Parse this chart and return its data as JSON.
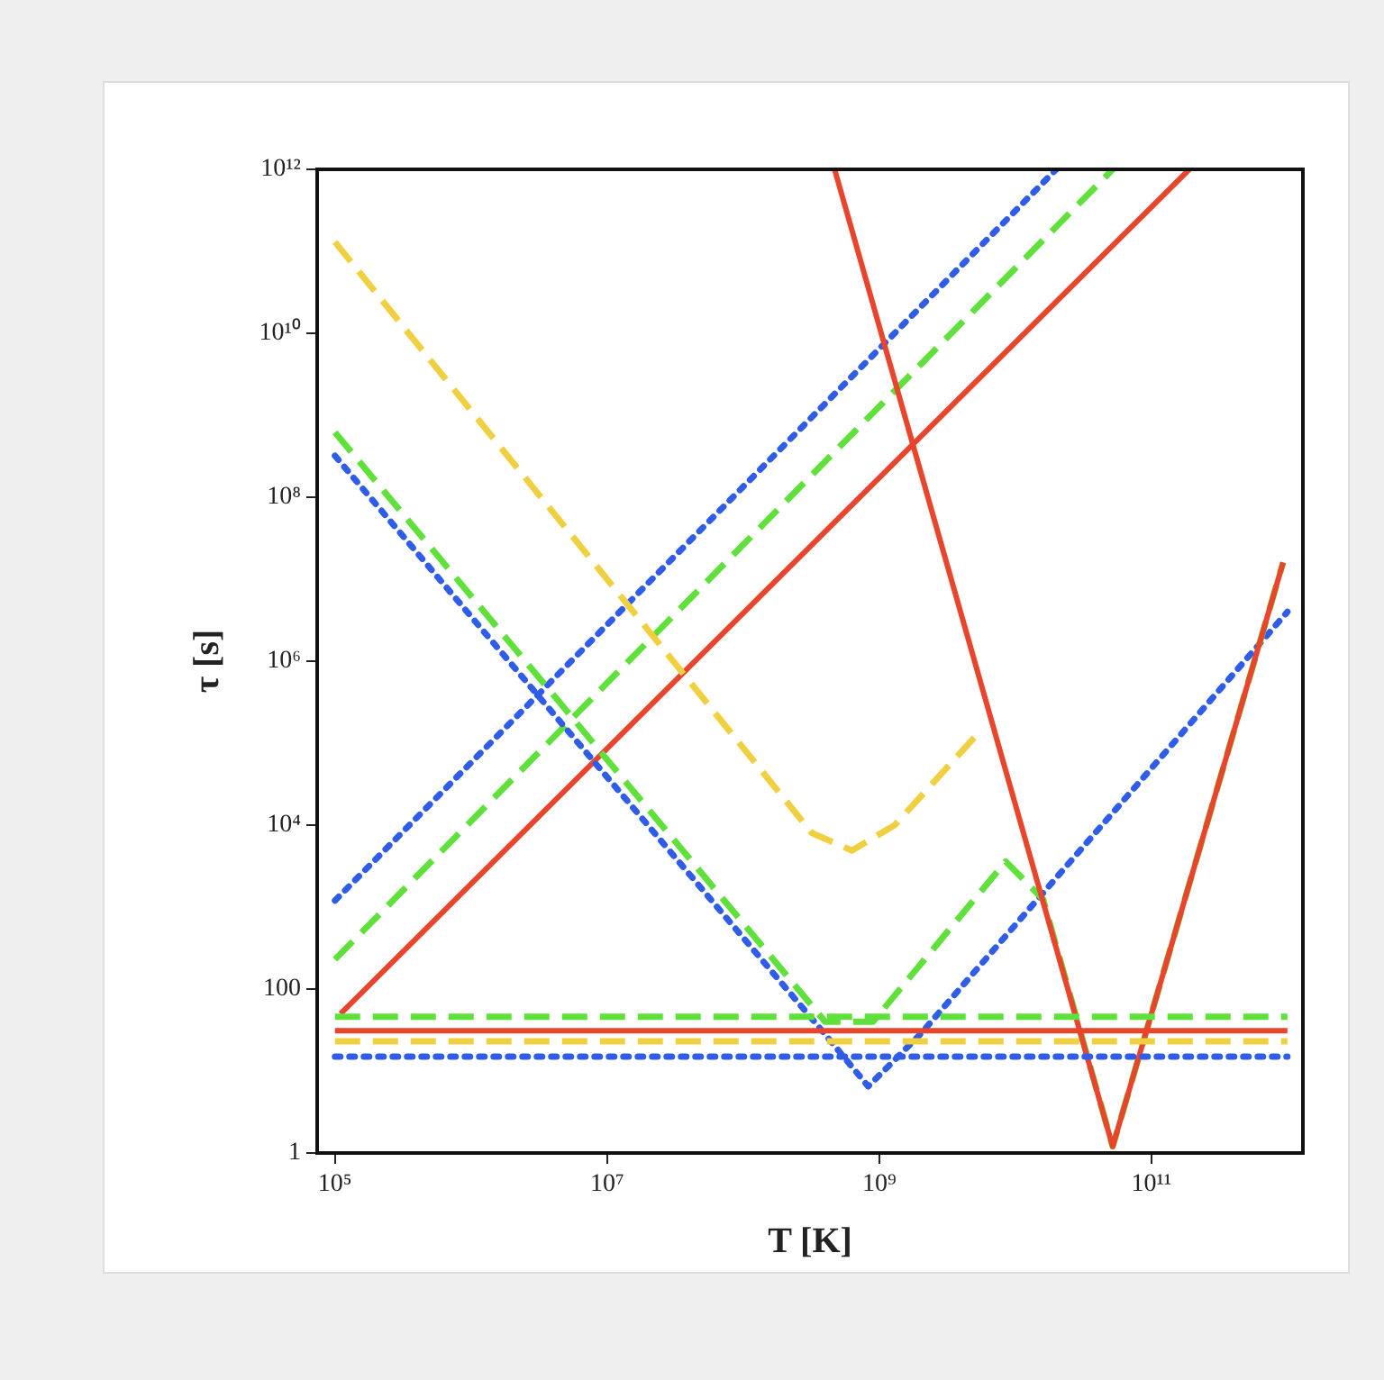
{
  "chart_data": {
    "type": "line",
    "xlabel": "T [K]",
    "ylabel": "τ [s]",
    "log": "xy",
    "grid": false,
    "legend": false,
    "marker": "none",
    "xlim": [
      74000,
      1300000000000
    ],
    "ylim": [
      1,
      1000000000000
    ],
    "xticks": [
      {
        "value": 100000,
        "label": "10⁵"
      },
      {
        "value": 10000000,
        "label": "10⁷"
      },
      {
        "value": 1000000000,
        "label": "10⁹"
      },
      {
        "value": 100000000000,
        "label": "10¹¹"
      }
    ],
    "yticks": [
      1,
      100,
      {
        "value": 10000,
        "label": "10⁴"
      },
      {
        "value": 1000000,
        "label": "10⁶"
      },
      {
        "value": 100000000,
        "label": "10⁸"
      },
      {
        "value": 10000000000,
        "label": "10¹⁰"
      },
      {
        "value": 1000000000000,
        "label": "10¹²"
      }
    ],
    "series": [
      {
        "color": "#2f5de8",
        "line_style": "dotted",
        "x": [
          100000,
          20000000000
        ],
        "values": [
          1200,
          1000000000000
        ]
      },
      {
        "color": "#5fe03a",
        "line_style": "dashed",
        "x": [
          100000,
          52000000000
        ],
        "values": [
          230,
          1000000000000
        ]
      },
      {
        "color": "#e8452c",
        "line_style": "solid",
        "x": [
          110000,
          190000000000
        ],
        "values": [
          50,
          1000000000000
        ]
      },
      {
        "color": "#f0d040",
        "line_style": "dashed",
        "x": [
          100000,
          320000000,
          630000000,
          1300000000,
          5200000000
        ],
        "values": [
          130000000000,
          8000,
          4900,
          10000,
          126000
        ]
      },
      {
        "color": "#2f5de8",
        "line_style": "dotted",
        "x": [
          100000,
          400000000,
          830000000,
          2000000000,
          1000000000000
        ],
        "values": [
          320000000,
          28,
          6.5,
          28,
          4000000
        ]
      },
      {
        "color": "#5fe03a",
        "line_style": "dashed",
        "x": [
          100000,
          400000000,
          900000000,
          8500000000,
          16000000000,
          52000000000,
          930000000000
        ],
        "values": [
          620000000,
          40,
          40,
          3600,
          1250,
          1.2,
          16000000
        ]
      },
      {
        "color": "#e8452c",
        "line_style": "solid",
        "x": [
          470000000,
          52000000000,
          930000000000
        ],
        "values": [
          1000000000000,
          1.2,
          16000000
        ]
      },
      {
        "color": "#5fe03a",
        "line_style": "dashed",
        "x": [
          100000,
          1000000000000
        ],
        "values": [
          46,
          46
        ]
      },
      {
        "color": "#e8452c",
        "line_style": "solid",
        "x": [
          100000,
          1000000000000
        ],
        "values": [
          31,
          31
        ]
      },
      {
        "color": "#f0d040",
        "line_style": "dashed",
        "x": [
          100000,
          1000000000000
        ],
        "values": [
          23,
          23
        ]
      },
      {
        "color": "#2f5de8",
        "line_style": "dotted",
        "x": [
          100000,
          1000000000000
        ],
        "values": [
          15,
          15
        ]
      }
    ]
  }
}
